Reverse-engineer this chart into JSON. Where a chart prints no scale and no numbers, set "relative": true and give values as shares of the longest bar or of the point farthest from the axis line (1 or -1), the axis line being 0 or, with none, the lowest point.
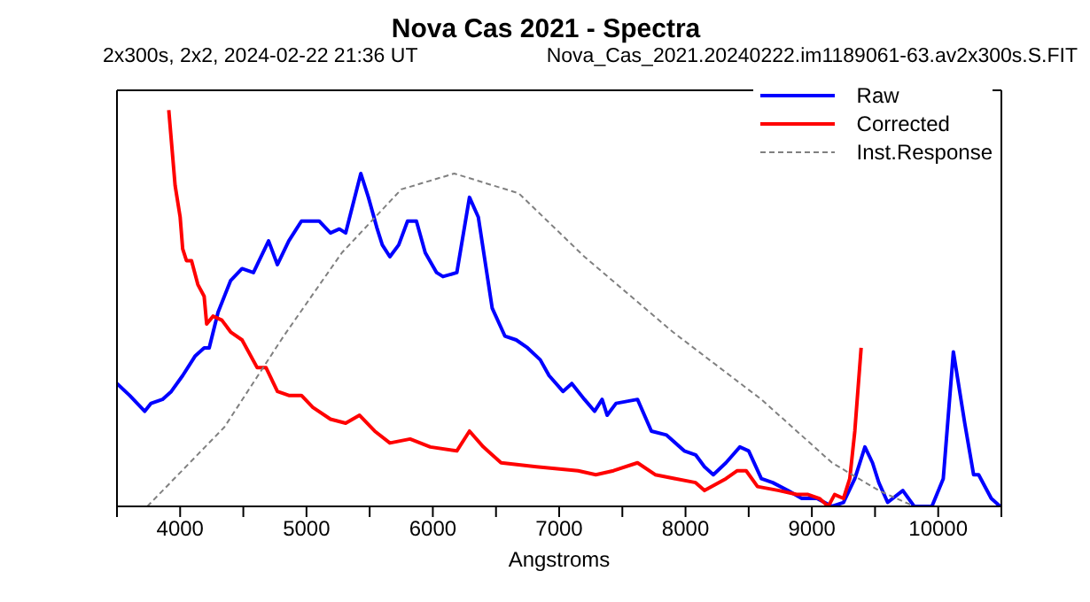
{
  "chart_data": {
    "type": "line",
    "title": "Nova Cas 2021 - Spectra",
    "subtitle": "2x300s, 2x2, 2024-02-22 21:36 UT",
    "annotations": [
      "Nova_Cas_2021.20240222.im1189061-63.av2x300s.S.FIT"
    ],
    "xlabel": "Angstroms",
    "relative": true,
    "xlim": [
      3500,
      10500
    ],
    "xticks": [
      {
        "value": 3500,
        "label": null
      },
      4000,
      {
        "value": 4500,
        "label": null
      },
      5000,
      {
        "value": 5500,
        "label": null
      },
      6000,
      {
        "value": 6500,
        "label": null
      },
      7000,
      {
        "value": 7500,
        "label": null
      },
      8000,
      {
        "value": 8500,
        "label": null
      },
      9000,
      {
        "value": 9500,
        "label": null
      },
      10000,
      {
        "value": 10500,
        "label": null
      }
    ],
    "legend": "top right",
    "marker": "none",
    "series": [
      {
        "name": "Raw",
        "color": "#0000ff",
        "line_style": "solid",
        "x": [
          3500,
          3600,
          3720,
          3770,
          3860,
          3930,
          4020,
          4120,
          4190,
          4230,
          4300,
          4400,
          4490,
          4580,
          4700,
          4770,
          4860,
          4960,
          5030,
          5100,
          5190,
          5260,
          5310,
          5350,
          5430,
          5490,
          5560,
          5600,
          5660,
          5730,
          5800,
          5870,
          5940,
          6030,
          6080,
          6190,
          6290,
          6360,
          6470,
          6570,
          6660,
          6750,
          6850,
          6920,
          7030,
          7100,
          7200,
          7280,
          7340,
          7380,
          7450,
          7620,
          7730,
          7850,
          7990,
          8080,
          8150,
          8220,
          8320,
          8430,
          8500,
          8600,
          8690,
          8810,
          8920,
          9040,
          9160,
          9250,
          9340,
          9420,
          9480,
          9530,
          9600,
          9720,
          9810,
          9950,
          10040,
          10120,
          10210,
          10280,
          10320,
          10420,
          10490
        ],
        "values": [
          0.31,
          0.28,
          0.24,
          0.26,
          0.27,
          0.29,
          0.33,
          0.38,
          0.4,
          0.4,
          0.49,
          0.57,
          0.6,
          0.59,
          0.67,
          0.61,
          0.67,
          0.72,
          0.72,
          0.72,
          0.69,
          0.7,
          0.69,
          0.74,
          0.84,
          0.78,
          0.7,
          0.66,
          0.63,
          0.66,
          0.72,
          0.72,
          0.64,
          0.59,
          0.58,
          0.59,
          0.78,
          0.73,
          0.5,
          0.43,
          0.42,
          0.4,
          0.37,
          0.33,
          0.29,
          0.31,
          0.27,
          0.24,
          0.27,
          0.23,
          0.26,
          0.27,
          0.19,
          0.18,
          0.14,
          0.13,
          0.1,
          0.08,
          0.11,
          0.15,
          0.14,
          0.07,
          0.06,
          0.04,
          0.02,
          0.02,
          0.0,
          0.01,
          0.07,
          0.15,
          0.11,
          0.06,
          0.01,
          0.04,
          0.0,
          0.0,
          0.07,
          0.39,
          0.21,
          0.08,
          0.08,
          0.02,
          0.0
        ]
      },
      {
        "name": "Corrected",
        "color": "#ff0000",
        "line_style": "solid",
        "x": [
          3910,
          3960,
          4000,
          4020,
          4050,
          4090,
          4140,
          4190,
          4210,
          4260,
          4330,
          4400,
          4490,
          4610,
          4680,
          4770,
          4860,
          4960,
          5050,
          5190,
          5310,
          5420,
          5540,
          5660,
          5820,
          5980,
          6190,
          6290,
          6400,
          6540,
          6820,
          7150,
          7290,
          7430,
          7620,
          7760,
          7920,
          8080,
          8150,
          8320,
          8410,
          8480,
          8570,
          8740,
          8880,
          8970,
          9060,
          9130,
          9180,
          9250,
          9300,
          9340,
          9390
        ],
        "values": [
          1.0,
          0.81,
          0.73,
          0.65,
          0.62,
          0.62,
          0.56,
          0.53,
          0.46,
          0.48,
          0.47,
          0.44,
          0.42,
          0.35,
          0.35,
          0.29,
          0.28,
          0.28,
          0.25,
          0.22,
          0.21,
          0.23,
          0.19,
          0.16,
          0.17,
          0.15,
          0.14,
          0.19,
          0.15,
          0.11,
          0.1,
          0.09,
          0.08,
          0.09,
          0.11,
          0.08,
          0.07,
          0.06,
          0.04,
          0.07,
          0.09,
          0.09,
          0.05,
          0.04,
          0.03,
          0.03,
          0.02,
          0.0,
          0.03,
          0.02,
          0.07,
          0.19,
          0.4
        ]
      },
      {
        "name": "Inst.Response",
        "color": "#808080",
        "line_style": "dashed",
        "x": [
          3740,
          4350,
          4820,
          5280,
          5750,
          6170,
          6680,
          7200,
          7900,
          8600,
          9160,
          9530,
          9810,
          10460
        ],
        "values": [
          0.0,
          0.2,
          0.43,
          0.64,
          0.8,
          0.84,
          0.79,
          0.63,
          0.44,
          0.27,
          0.11,
          0.04,
          0.0,
          0.0
        ]
      }
    ]
  }
}
